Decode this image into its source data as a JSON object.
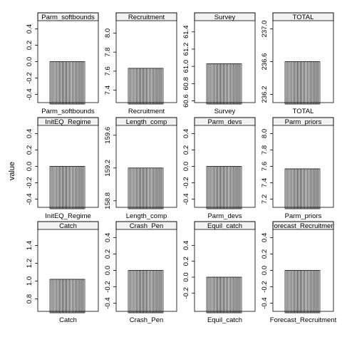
{
  "chart_data": {
    "type": "bar",
    "ylabel": "value",
    "facet_layout": "3 rows x 4 columns",
    "bars_per_panel": 25,
    "panels": [
      {
        "title": "Parm_softbounds",
        "xlabel": "Parm_softbounds",
        "bar_value": 0.0,
        "ylim": [
          -0.5,
          0.5
        ],
        "y_ticks": [
          -0.4,
          -0.2,
          0.0,
          0.2,
          0.4
        ],
        "y_tick_labels": [
          "-0.4",
          "-0.2",
          "0.0",
          "0.2",
          "0.4"
        ]
      },
      {
        "title": "Recruitment",
        "xlabel": "Recruitment",
        "bar_value": 7.63,
        "ylim": [
          7.27,
          8.13
        ],
        "y_ticks": [
          7.4,
          7.6,
          7.8,
          8.0
        ],
        "y_tick_labels": [
          "7.4",
          "7.6",
          "7.8",
          "8.0"
        ]
      },
      {
        "title": "Survey",
        "xlabel": "Survey",
        "bar_value": 61.03,
        "ylim": [
          60.58,
          61.53
        ],
        "y_ticks": [
          60.6,
          60.8,
          61.0,
          61.2,
          61.4
        ],
        "y_tick_labels": [
          "60.6",
          "60.8",
          "61.0",
          "61.2",
          "61.4"
        ]
      },
      {
        "title": "TOTAL",
        "xlabel": "TOTAL",
        "bar_value": 236.6,
        "ylim": [
          236.1,
          237.1
        ],
        "y_ticks": [
          236.2,
          236.6,
          237.0
        ],
        "y_tick_labels": [
          "236.2",
          "236.6",
          "237.0"
        ]
      },
      {
        "title": "InitEQ_Regime",
        "xlabel": "InitEQ_Regime",
        "bar_value": 0.0,
        "ylim": [
          -0.5,
          0.5
        ],
        "y_ticks": [
          -0.4,
          -0.2,
          0.0,
          0.2,
          0.4
        ],
        "y_tick_labels": [
          "-0.4",
          "-0.2",
          "0.0",
          "0.2",
          "0.4"
        ]
      },
      {
        "title": "Length_comp",
        "xlabel": "Length_comp",
        "bar_value": 159.2,
        "ylim": [
          158.72,
          159.72
        ],
        "y_ticks": [
          158.8,
          159.2,
          159.6
        ],
        "y_tick_labels": [
          "158.8",
          "159.2",
          "159.6"
        ]
      },
      {
        "title": "Parm_devs",
        "xlabel": "Parm_devs",
        "bar_value": 0.0,
        "ylim": [
          -0.5,
          0.5
        ],
        "y_ticks": [
          -0.4,
          -0.2,
          0.0,
          0.2,
          0.4
        ],
        "y_tick_labels": [
          "-0.4",
          "-0.2",
          "0.0",
          "0.2",
          "0.4"
        ]
      },
      {
        "title": "Parm_priors",
        "xlabel": "Parm_priors",
        "bar_value": 7.57,
        "ylim": [
          7.1,
          8.1
        ],
        "y_ticks": [
          7.2,
          7.4,
          7.6,
          7.8,
          8.0
        ],
        "y_tick_labels": [
          "7.2",
          "7.4",
          "7.6",
          "7.8",
          "8.0"
        ]
      },
      {
        "title": "Catch",
        "xlabel": "Catch",
        "bar_value": 1.02,
        "ylim": [
          0.66,
          1.58
        ],
        "y_ticks": [
          0.8,
          1.0,
          1.2,
          1.4
        ],
        "y_tick_labels": [
          "0.8",
          "1.0",
          "1.2",
          "1.4"
        ]
      },
      {
        "title": "Crash_Pen",
        "xlabel": "Crash_Pen",
        "bar_value": 0.0,
        "ylim": [
          -0.5,
          0.5
        ],
        "y_ticks": [
          -0.4,
          -0.2,
          0.0,
          0.2,
          0.4
        ],
        "y_tick_labels": [
          "-0.4",
          "-0.2",
          "0.0",
          "0.2",
          "0.4"
        ]
      },
      {
        "title": "Equil_catch",
        "xlabel": "Equil_catch",
        "bar_value": 0.0,
        "ylim": [
          -0.43,
          0.6
        ],
        "y_ticks": [
          -0.2,
          0.0,
          0.2,
          0.4
        ],
        "y_tick_labels": [
          "-0.2",
          "0.0",
          "0.2",
          "0.4"
        ]
      },
      {
        "title": "Forecast_Recruitment",
        "xlabel": "Forecast_Recruitment",
        "bar_value": 0.0,
        "ylim": [
          -0.5,
          0.5
        ],
        "y_ticks": [
          -0.4,
          -0.2,
          0.0,
          0.2,
          0.4
        ],
        "y_tick_labels": [
          "-0.4",
          "-0.2",
          "0.0",
          "0.2",
          "0.4"
        ]
      }
    ]
  }
}
